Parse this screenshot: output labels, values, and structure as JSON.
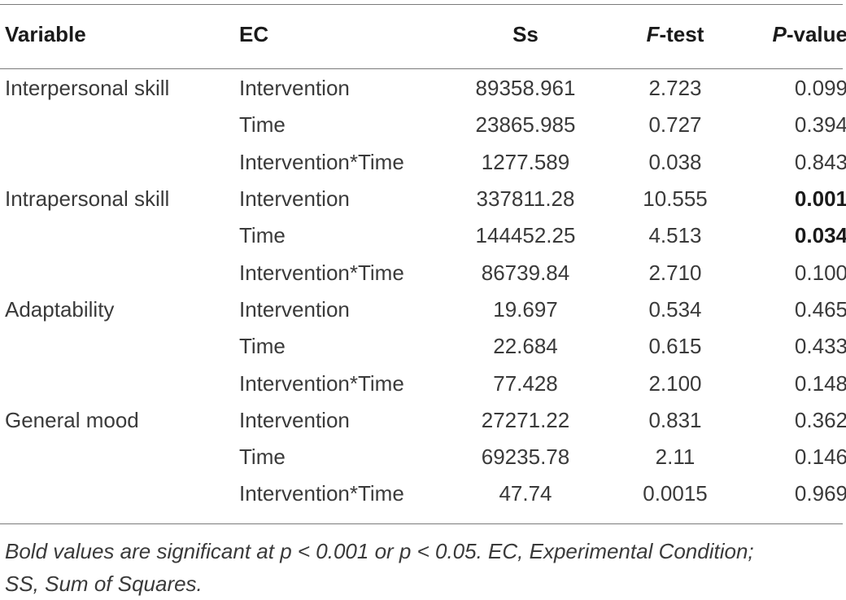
{
  "table": {
    "headers": {
      "variable": "Variable",
      "ec": "EC",
      "ss": "Ss",
      "f_italic": "F",
      "f_rest": "-test",
      "p_italic": "P",
      "p_rest": "-value"
    },
    "rows": [
      {
        "variable": "Interpersonal skill",
        "ec": "Intervention",
        "ss": "89358.961",
        "f": "2.723",
        "p": "0.099",
        "p_bold": false
      },
      {
        "variable": "",
        "ec": "Time",
        "ss": "23865.985",
        "f": "0.727",
        "p": "0.394",
        "p_bold": false
      },
      {
        "variable": "",
        "ec": "Intervention*Time",
        "ss": "1277.589",
        "f": "0.038",
        "p": "0.843",
        "p_bold": false
      },
      {
        "variable": "Intrapersonal skill",
        "ec": "Intervention",
        "ss": "337811.28",
        "f": "10.555",
        "p": "0.001",
        "p_bold": true
      },
      {
        "variable": "",
        "ec": "Time",
        "ss": "144452.25",
        "f": "4.513",
        "p": "0.034",
        "p_bold": true
      },
      {
        "variable": "",
        "ec": "Intervention*Time",
        "ss": "86739.84",
        "f": "2.710",
        "p": "0.100",
        "p_bold": false
      },
      {
        "variable": "Adaptability",
        "ec": "Intervention",
        "ss": "19.697",
        "f": "0.534",
        "p": "0.465",
        "p_bold": false
      },
      {
        "variable": "",
        "ec": "Time",
        "ss": "22.684",
        "f": "0.615",
        "p": "0.433",
        "p_bold": false
      },
      {
        "variable": "",
        "ec": "Intervention*Time",
        "ss": "77.428",
        "f": "2.100",
        "p": "0.148",
        "p_bold": false
      },
      {
        "variable": "General mood",
        "ec": "Intervention",
        "ss": "27271.22",
        "f": "0.831",
        "p": "0.362",
        "p_bold": false
      },
      {
        "variable": "",
        "ec": "Time",
        "ss": "69235.78",
        "f": "2.11",
        "p": "0.146",
        "p_bold": false
      },
      {
        "variable": "",
        "ec": "Intervention*Time",
        "ss": "47.74",
        "f": "0.0015",
        "p": "0.969",
        "p_bold": false
      }
    ]
  },
  "footnote": {
    "line1": "Bold values are significant at p < 0.001 or p < 0.05. EC, Experimental Condition;",
    "line2": "SS, Sum of Squares."
  }
}
